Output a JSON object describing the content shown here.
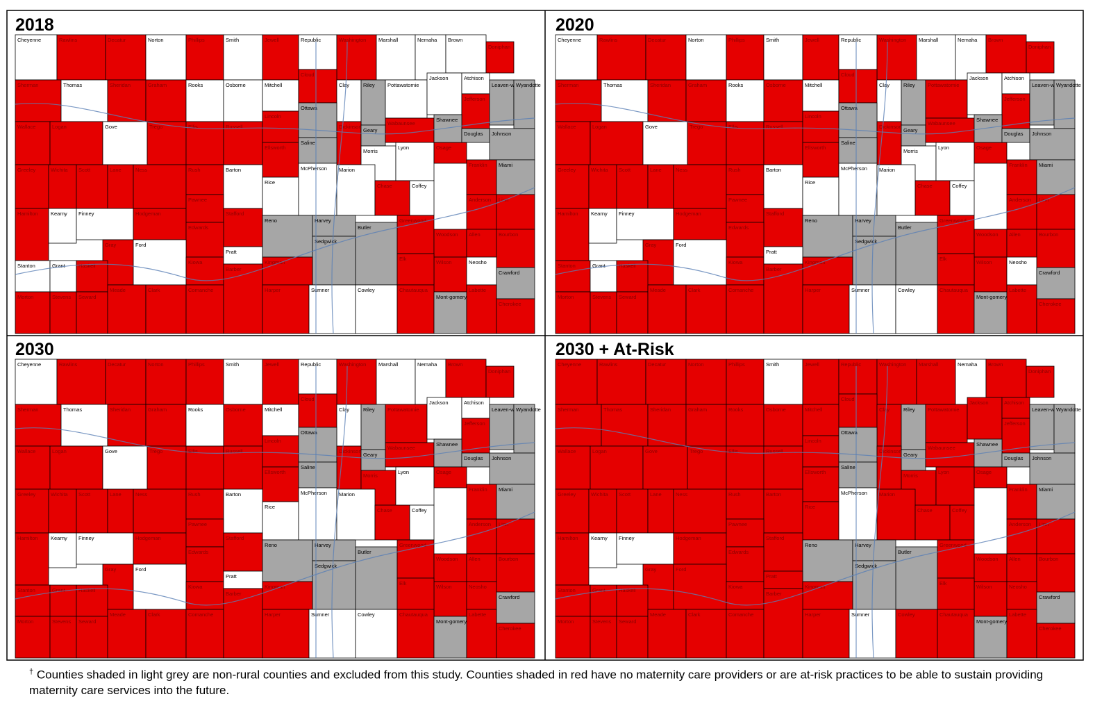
{
  "panels": [
    {
      "title": "2018",
      "white": [
        "Cheyenne",
        "Norton",
        "Smith",
        "Republic",
        "Marshall",
        "Nemaha",
        "Brown",
        "Thomas",
        "Rooks",
        "Osborne",
        "Mitchell",
        "Clay",
        "Pottawatomie",
        "Jackson",
        "Atchison",
        "Gove",
        "Barton",
        "Rice",
        "McPherson",
        "Marion",
        "Morris",
        "Lyon",
        "Coffey",
        "Kearny",
        "Finney",
        "Ford",
        "Pratt",
        "Stanton",
        "Grant",
        "Neosho",
        "Sumner",
        "Cowley"
      ],
      "grey": [
        "Ottawa",
        "Saline",
        "Riley",
        "Geary",
        "Shawnee",
        "Douglas",
        "Johnson",
        "Leaven-worth",
        "Wyandotte",
        "Miami",
        "Reno",
        "Harvey",
        "Sedgwick",
        "Butler",
        "Crawford",
        "Mont-gomery"
      ]
    },
    {
      "title": "2020",
      "white": [
        "Cheyenne",
        "Norton",
        "Smith",
        "Republic",
        "Marshall",
        "Nemaha",
        "Thomas",
        "Rooks",
        "Mitchell",
        "Clay",
        "Jackson",
        "Atchison",
        "Gove",
        "Barton",
        "Rice",
        "McPherson",
        "Marion",
        "Morris",
        "Lyon",
        "Coffey",
        "Kearny",
        "Finney",
        "Ford",
        "Pratt",
        "Grant",
        "Neosho",
        "Sumner",
        "Cowley"
      ],
      "grey": [
        "Ottawa",
        "Saline",
        "Riley",
        "Geary",
        "Shawnee",
        "Douglas",
        "Johnson",
        "Leaven-worth",
        "Wyandotte",
        "Miami",
        "Reno",
        "Harvey",
        "Sedgwick",
        "Butler",
        "Crawford",
        "Mont-gomery"
      ]
    },
    {
      "title": "2030",
      "white": [
        "Cheyenne",
        "Smith",
        "Republic",
        "Marshall",
        "Nemaha",
        "Thomas",
        "Rooks",
        "Mitchell",
        "Clay",
        "Jackson",
        "Atchison",
        "Gove",
        "Barton",
        "Rice",
        "McPherson",
        "Marion",
        "Lyon",
        "Coffey",
        "Kearny",
        "Finney",
        "Ford",
        "Pratt",
        "Sumner",
        "Cowley"
      ],
      "grey": [
        "Ottawa",
        "Saline",
        "Riley",
        "Geary",
        "Shawnee",
        "Douglas",
        "Johnson",
        "Leaven-worth",
        "Wyandotte",
        "Miami",
        "Reno",
        "Harvey",
        "Sedgwick",
        "Butler",
        "Crawford",
        "Mont-gomery"
      ]
    },
    {
      "title": "2030 + At-Risk",
      "white": [
        "Smith",
        "Nemaha",
        "Kearny",
        "Finney",
        "McPherson",
        "Sumner"
      ],
      "grey": [
        "Ottawa",
        "Saline",
        "Riley",
        "Geary",
        "Shawnee",
        "Douglas",
        "Johnson",
        "Leaven-worth",
        "Wyandotte",
        "Miami",
        "Reno",
        "Harvey",
        "Sedgwick",
        "Butler",
        "Crawford",
        "Mont-gomery"
      ]
    }
  ],
  "counties": [
    "Cheyenne",
    "Rawlins",
    "Decatur",
    "Norton",
    "Phillips",
    "Smith",
    "Jewell",
    "Republic",
    "Washington",
    "Marshall",
    "Nemaha",
    "Brown",
    "Doniphan",
    "Sherman",
    "Thomas",
    "Sheridan",
    "Graham",
    "Rooks",
    "Osborne",
    "Mitchell",
    "Cloud",
    "Clay",
    "Riley",
    "Pottawatomie",
    "Jackson",
    "Atchison",
    "Jefferson",
    "Leaven-worth",
    "Wyandotte",
    "Wallace",
    "Logan",
    "Gove",
    "Trego",
    "Ellis",
    "Russell",
    "Lincoln",
    "Ottawa",
    "Dickinson",
    "Geary",
    "Wabaunsee",
    "Shawnee",
    "Douglas",
    "Johnson",
    "Ellsworth",
    "Saline",
    "Morris",
    "Lyon",
    "Osage",
    "Franklin",
    "Miami",
    "Greeley",
    "Wichita",
    "Scott",
    "Lane",
    "Ness",
    "Rush",
    "Barton",
    "Rice",
    "McPherson",
    "Marion",
    "Chase",
    "Coffey",
    "Anderson",
    "Linn",
    "Hamilton",
    "Kearny",
    "Finney",
    "Hodgeman",
    "Pawnee",
    "Stafford",
    "Reno",
    "Harvey",
    "Butler",
    "Greenwood",
    "Woodson",
    "Allen",
    "Bourbon",
    "Edwards",
    "Gray",
    "Ford",
    "Kiowa",
    "Pratt",
    "Sedgwick",
    "Kingman",
    "Stanton",
    "Grant",
    "Haskell",
    "Wilson",
    "Neosho",
    "Crawford",
    "Elk",
    "Morton",
    "Stevens",
    "Seward",
    "Meade",
    "Clark",
    "Comanche",
    "Barber",
    "Harper",
    "Sumner",
    "Cowley",
    "Chautauqua",
    "Mont-gomery",
    "Labette",
    "Cherokee"
  ],
  "colors": {
    "red": "#e50000",
    "white": "#ffffff",
    "grey": "#a6a6a6"
  },
  "footnote": {
    "mark": "†",
    "text": "Counties shaded in light grey are non-rural counties and excluded from this study. Counties shaded in red have no maternity care providers or are at-risk practices to be able to sustain providing maternity care services into the future."
  }
}
